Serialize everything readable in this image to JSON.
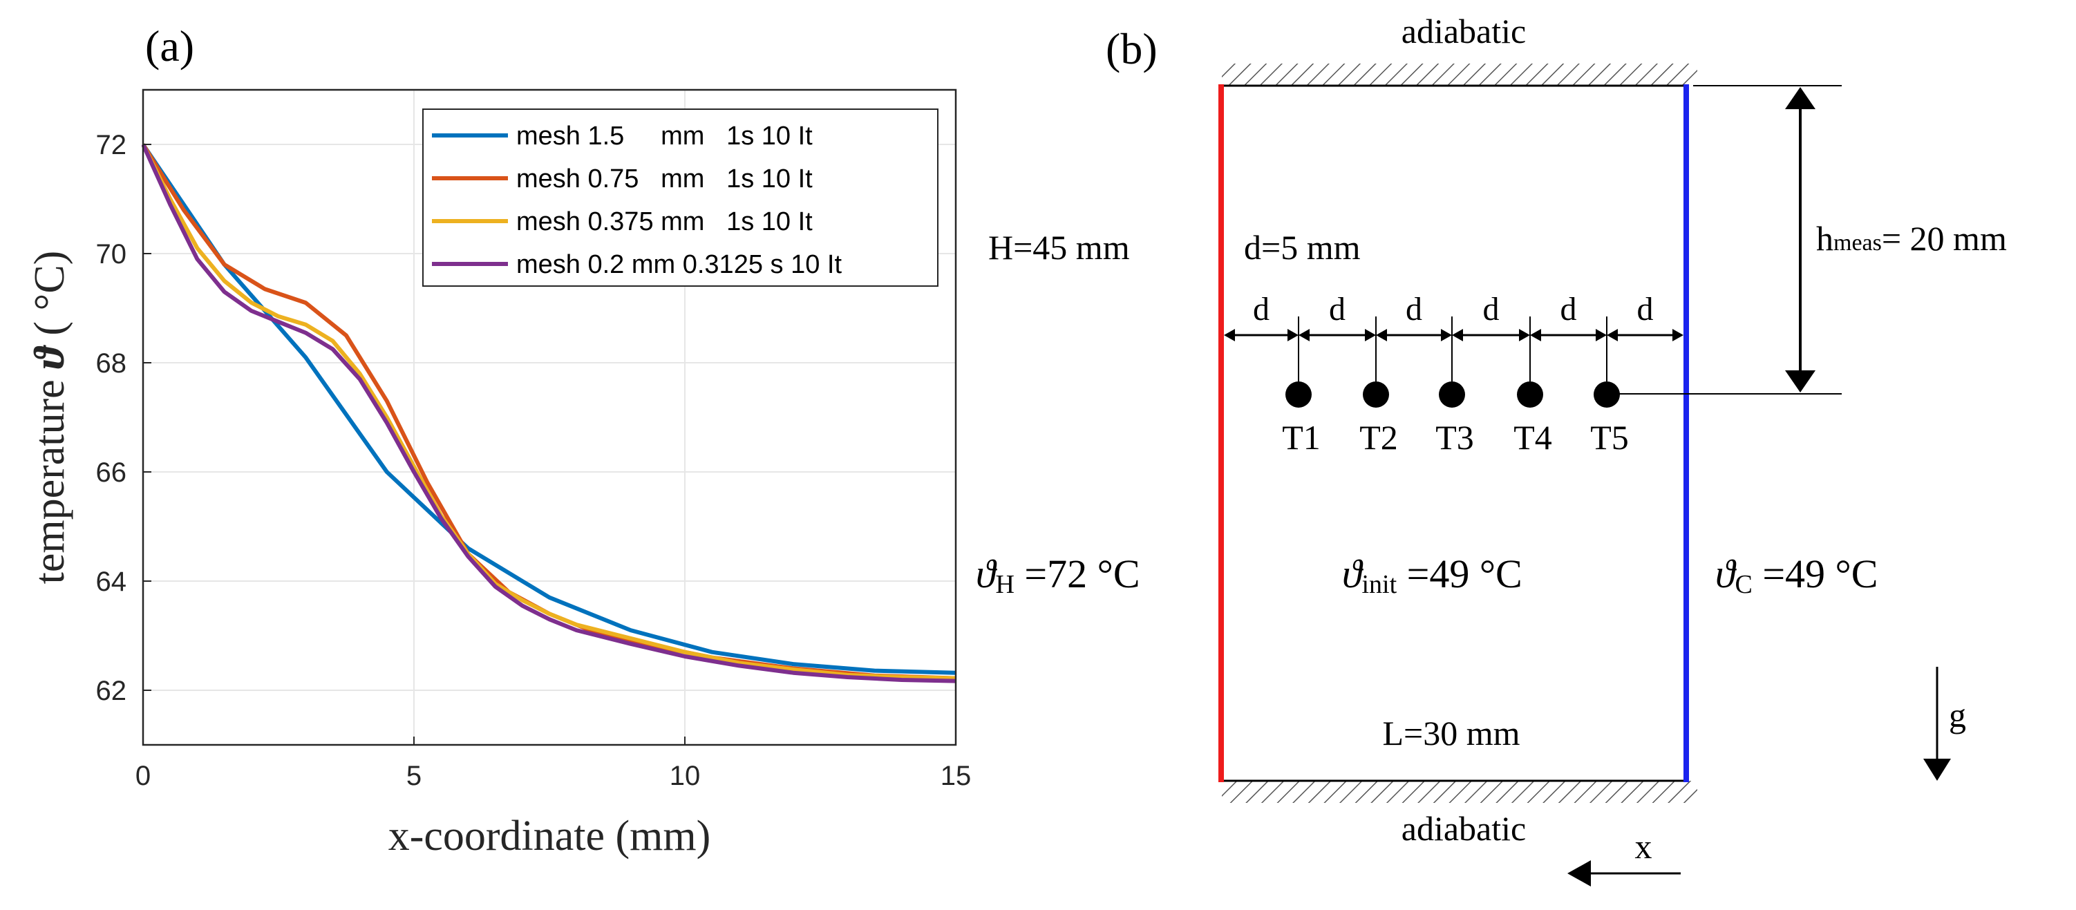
{
  "panel_a_label": "(a)",
  "panel_b_label": "(b)",
  "chart_data": {
    "type": "line",
    "xlabel": "x-coordinate (mm)",
    "ylabel_prefix": "temperature ",
    "ylabel_symbol": "ϑ",
    "ylabel_suffix": " ( °C)",
    "xlim": [
      0,
      15
    ],
    "ylim": [
      61,
      73
    ],
    "xticks": [
      0,
      5,
      10,
      15
    ],
    "yticks": [
      62,
      64,
      66,
      68,
      70,
      72
    ],
    "grid": true,
    "legend_position": "top-right",
    "series": [
      {
        "name": "mesh 1.5     mm   1s 10 It",
        "color": "#0072BD",
        "x": [
          0,
          1.5,
          3,
          4.5,
          6,
          7.5,
          9,
          10.5,
          12,
          13.5,
          15
        ],
        "y": [
          72,
          69.8,
          68.1,
          66.0,
          64.6,
          63.7,
          63.1,
          62.7,
          62.48,
          62.36,
          62.32
        ]
      },
      {
        "name": "mesh 0.75   mm   1s 10 It",
        "color": "#D95319",
        "x": [
          0,
          0.75,
          1.5,
          2.25,
          3,
          3.75,
          4.5,
          5.25,
          6,
          6.75,
          7.5,
          8.25,
          9,
          10.5,
          12,
          13.5,
          15
        ],
        "y": [
          72,
          70.8,
          69.8,
          69.35,
          69.1,
          68.5,
          67.3,
          65.8,
          64.5,
          63.8,
          63.4,
          63.1,
          62.9,
          62.6,
          62.4,
          62.27,
          62.22
        ]
      },
      {
        "name": "mesh 0.375 mm   1s 10 It",
        "color": "#EDB120",
        "x": [
          0,
          0.5,
          1,
          1.5,
          2,
          2.5,
          3,
          3.5,
          4,
          4.5,
          5,
          5.5,
          6,
          6.5,
          7,
          7.5,
          8,
          9,
          10,
          11,
          12,
          13,
          14,
          15
        ],
        "y": [
          72,
          71.0,
          70.1,
          69.5,
          69.1,
          68.85,
          68.7,
          68.4,
          67.8,
          67.0,
          66.1,
          65.2,
          64.5,
          63.95,
          63.65,
          63.4,
          63.2,
          62.95,
          62.7,
          62.5,
          62.38,
          62.28,
          62.24,
          62.22
        ]
      },
      {
        "name": "mesh 0.2 mm 0.3125 s 10 It",
        "color": "#7E2F8E",
        "x": [
          0,
          0.5,
          1,
          1.5,
          2,
          2.5,
          3,
          3.5,
          4,
          4.5,
          5,
          5.5,
          6,
          6.5,
          7,
          7.5,
          8,
          9,
          10,
          11,
          12,
          13,
          14,
          15
        ],
        "y": [
          72,
          70.9,
          69.9,
          69.3,
          68.95,
          68.75,
          68.55,
          68.25,
          67.7,
          66.9,
          66.0,
          65.15,
          64.45,
          63.9,
          63.55,
          63.3,
          63.1,
          62.85,
          62.62,
          62.45,
          62.32,
          62.24,
          62.19,
          62.17
        ]
      }
    ]
  },
  "diagram": {
    "top_label": "adiabatic",
    "bottom_label": "adiabatic",
    "H_label": "H=45 mm",
    "d_label": "d=5 mm",
    "d_symbol": "d",
    "hmeas_main": "h",
    "hmeas_sub": "meas",
    "hmeas_value": "= 20 mm",
    "theta_symbol": "ϑ",
    "thetaH_sub": "H",
    "thetaH_value": " =72 °C",
    "thetaInit_sub": "init",
    "thetaInit_value": " =49 °C",
    "thetaC_sub": "C",
    "thetaC_value": " =49 °C",
    "L_label": "L=30 mm",
    "g_label": "g",
    "x_label": "x",
    "sensors": [
      "T1",
      "T2",
      "T3",
      "T4",
      "T5"
    ],
    "hot_wall_color": "#EE1C1C",
    "cold_wall_color": "#1A23EE"
  }
}
